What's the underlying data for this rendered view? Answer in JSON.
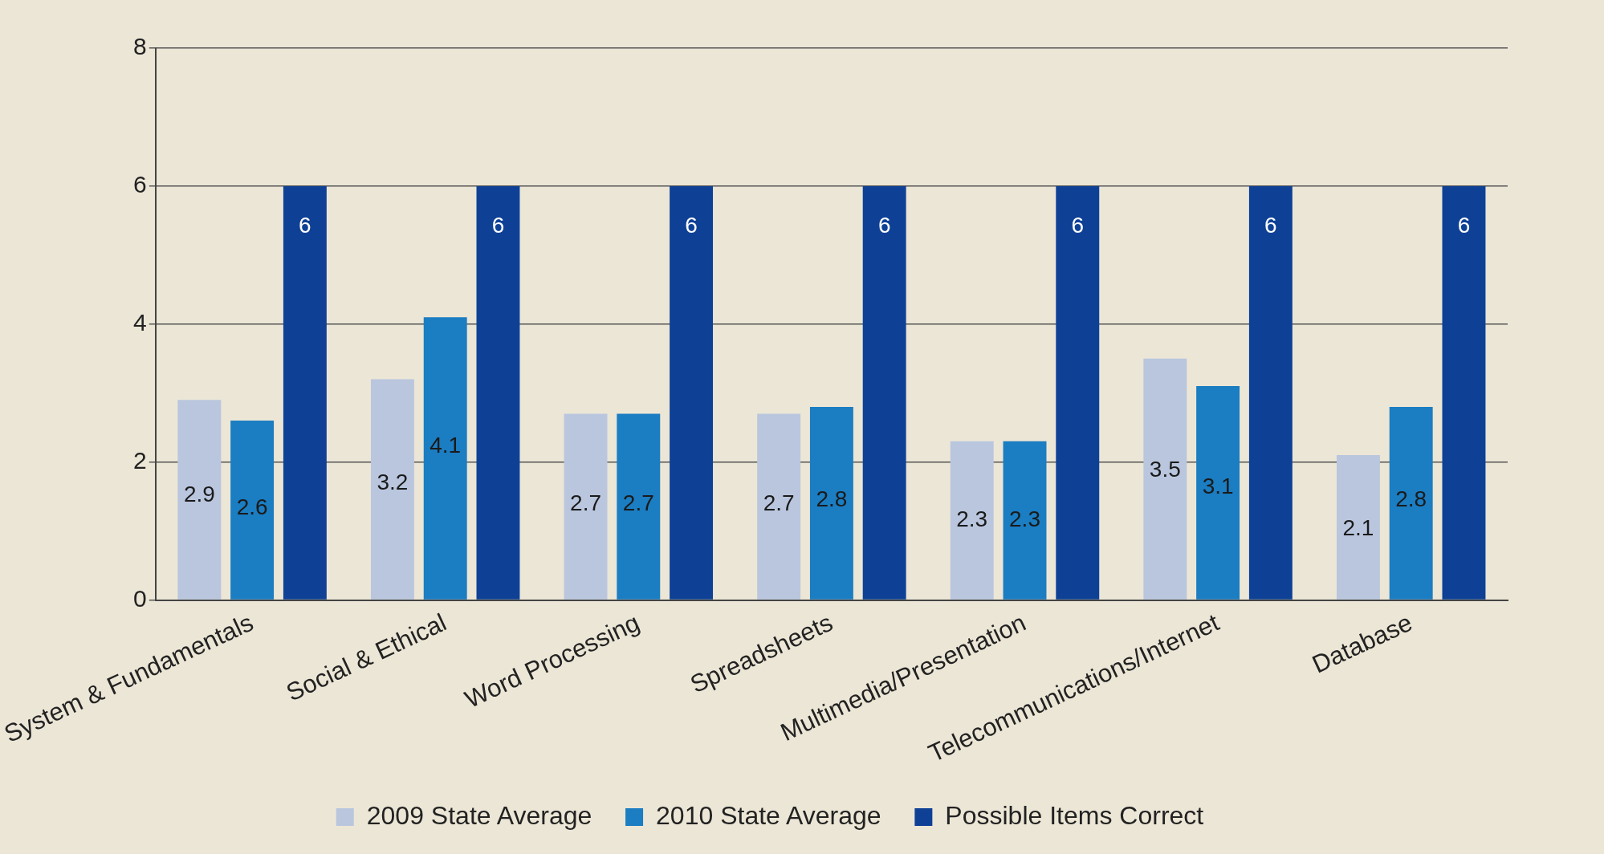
{
  "chart_data": {
    "type": "bar",
    "categories": [
      "System & Fundamentals",
      "Social & Ethical",
      "Word Processing",
      "Spreadsheets",
      "Multimedia/Presentation",
      "Telecommunications/Internet",
      "Database"
    ],
    "series": [
      {
        "name": "2009 State Average",
        "color": "#b9c6de",
        "values": [
          2.9,
          3.2,
          2.7,
          2.7,
          2.3,
          3.5,
          2.1
        ]
      },
      {
        "name": "2010 State Average",
        "color": "#1b7dc2",
        "values": [
          2.6,
          4.1,
          2.7,
          2.8,
          2.3,
          3.1,
          2.8
        ]
      },
      {
        "name": "Possible Items Correct",
        "color": "#0e4196",
        "values": [
          6,
          6,
          6,
          6,
          6,
          6,
          6
        ]
      }
    ],
    "ylim": [
      0,
      8
    ],
    "yticks": [
      0,
      2,
      4,
      6,
      8
    ],
    "grid": "y",
    "legend": "bottom",
    "data_labels": true
  }
}
